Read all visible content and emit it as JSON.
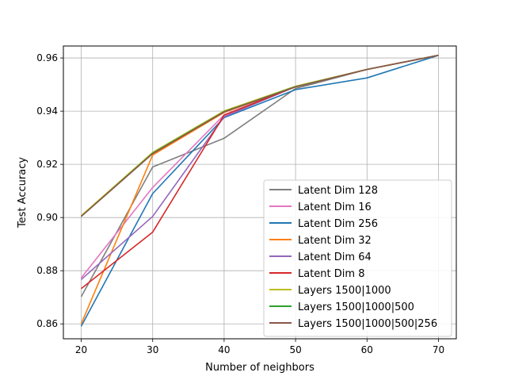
{
  "chart_data": {
    "type": "line",
    "title": "",
    "xlabel": "Number of neighbors",
    "ylabel": "Test Accuracy",
    "xlim": [
      17.5,
      72.5
    ],
    "ylim": [
      0.8544,
      0.9645
    ],
    "xticks": [
      20,
      30,
      40,
      50,
      60,
      70
    ],
    "xtick_labels": [
      "20",
      "30",
      "40",
      "50",
      "60",
      "70"
    ],
    "yticks": [
      0.86,
      0.88,
      0.9,
      0.92,
      0.94,
      0.96
    ],
    "ytick_labels": [
      "0.86",
      "0.88",
      "0.90",
      "0.92",
      "0.94",
      "0.96"
    ],
    "grid": true,
    "legend_position": "lower-right",
    "x": [
      20,
      30,
      40,
      50,
      60,
      70
    ],
    "series": [
      {
        "name": "Latent Dim 128",
        "color": "#7f7f7f",
        "values": [
          0.8702,
          0.919,
          0.9298,
          0.9485,
          0.9557,
          0.961
        ]
      },
      {
        "name": "Latent Dim 16",
        "color": "#e377c2",
        "values": [
          0.8773,
          0.9113,
          0.9386,
          0.9492,
          0.9557,
          0.961
        ]
      },
      {
        "name": "Latent Dim 256",
        "color": "#1f77b4",
        "values": [
          0.8591,
          0.909,
          0.9376,
          0.9481,
          0.9525,
          0.961
        ]
      },
      {
        "name": "Latent Dim 32",
        "color": "#ff7f0e",
        "values": [
          0.86,
          0.9235,
          0.9395,
          0.9492,
          0.9557,
          0.961
        ]
      },
      {
        "name": "Latent Dim 64",
        "color": "#9467bd",
        "values": [
          0.8767,
          0.9004,
          0.9379,
          0.9492,
          0.9557,
          0.961
        ]
      },
      {
        "name": "Latent Dim 8",
        "color": "#d62728",
        "values": [
          0.8733,
          0.8945,
          0.9385,
          0.9492,
          0.9557,
          0.961
        ]
      },
      {
        "name": "Layers 1500|1000",
        "color": "#bcbd22",
        "values": [
          0.9007,
          0.9245,
          0.9401,
          0.9494,
          0.9557,
          0.961
        ]
      },
      {
        "name": "Layers 1500|1000|500",
        "color": "#2ca02c",
        "values": [
          0.9004,
          0.9242,
          0.9398,
          0.9492,
          0.9557,
          0.961
        ]
      },
      {
        "name": "Layers 1500|1000|500|256",
        "color": "#8c564b",
        "values": [
          0.9004,
          0.924,
          0.9397,
          0.9491,
          0.9557,
          0.961
        ]
      }
    ]
  }
}
